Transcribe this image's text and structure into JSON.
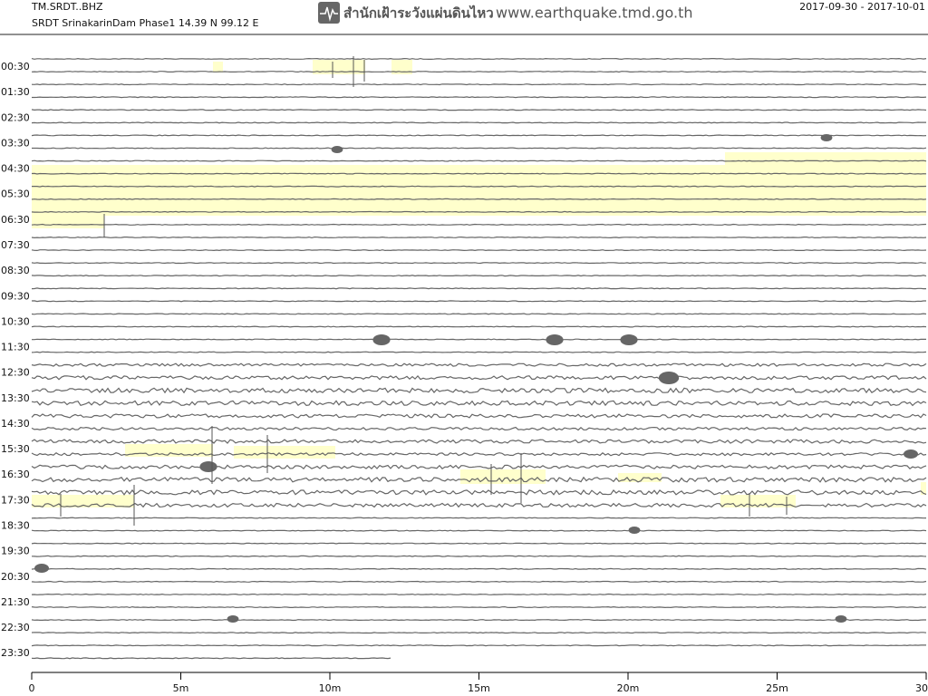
{
  "header": {
    "channel": "TM.SRDT..BHZ",
    "station": "SRDT SrinakarinDam Phase1  14.39 N 99.12 E",
    "agency": "สำนักเฝ้าระวังแผ่นดินไหว",
    "website": "www.earthquake.tmd.go.th",
    "date_range": "2017-09-30 - 2017-10-01"
  },
  "row_labels": [
    "00:30",
    "01:30",
    "02:30",
    "03:30",
    "04:30",
    "05:30",
    "06:30",
    "07:30",
    "08:30",
    "09:30",
    "10:30",
    "11:30",
    "12:30",
    "13:30",
    "14:30",
    "15:30",
    "16:30",
    "17:30",
    "18:30",
    "19:30",
    "20:30",
    "21:30",
    "22:30",
    "23:30"
  ],
  "x_axis": {
    "ticks": [
      "0",
      "5m",
      "10m",
      "15m",
      "20m",
      "25m",
      "30"
    ]
  }
}
